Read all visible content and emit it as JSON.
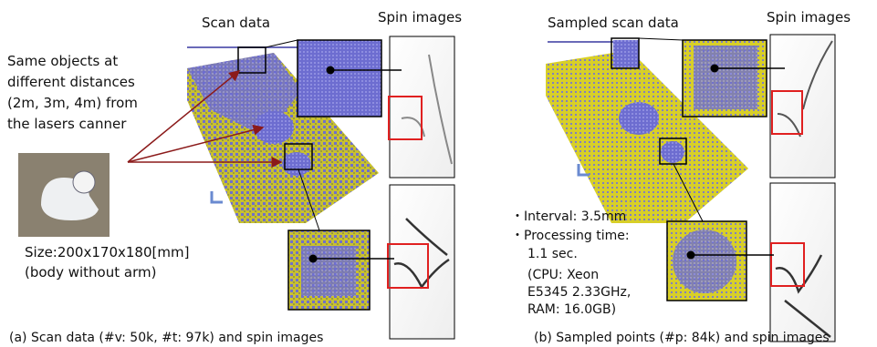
{
  "panels": [
    {
      "scan_title": "Scan data",
      "spin_title": "Spin images",
      "caption": "(a) Scan data (#v: 50k, #t: 97k) and spin images"
    },
    {
      "scan_title": "Sampled scan data",
      "spin_title": "Spin images",
      "caption": "(b) Sampled points (#p: 84k) and spin images"
    }
  ],
  "note": [
    "Same objects at",
    "different distances",
    "(2m, 3m, 4m) from",
    "the lasers canner"
  ],
  "size": [
    "Size:200x170x180[mm]",
    "(body without arm)"
  ],
  "params": [
    "・Interval: 3.5mm",
    "・Processing time:",
    "1.1 sec.",
    "(CPU:  Xeon",
    "E5345 2.33GHz,",
    "RAM: 16.0GB)"
  ]
}
